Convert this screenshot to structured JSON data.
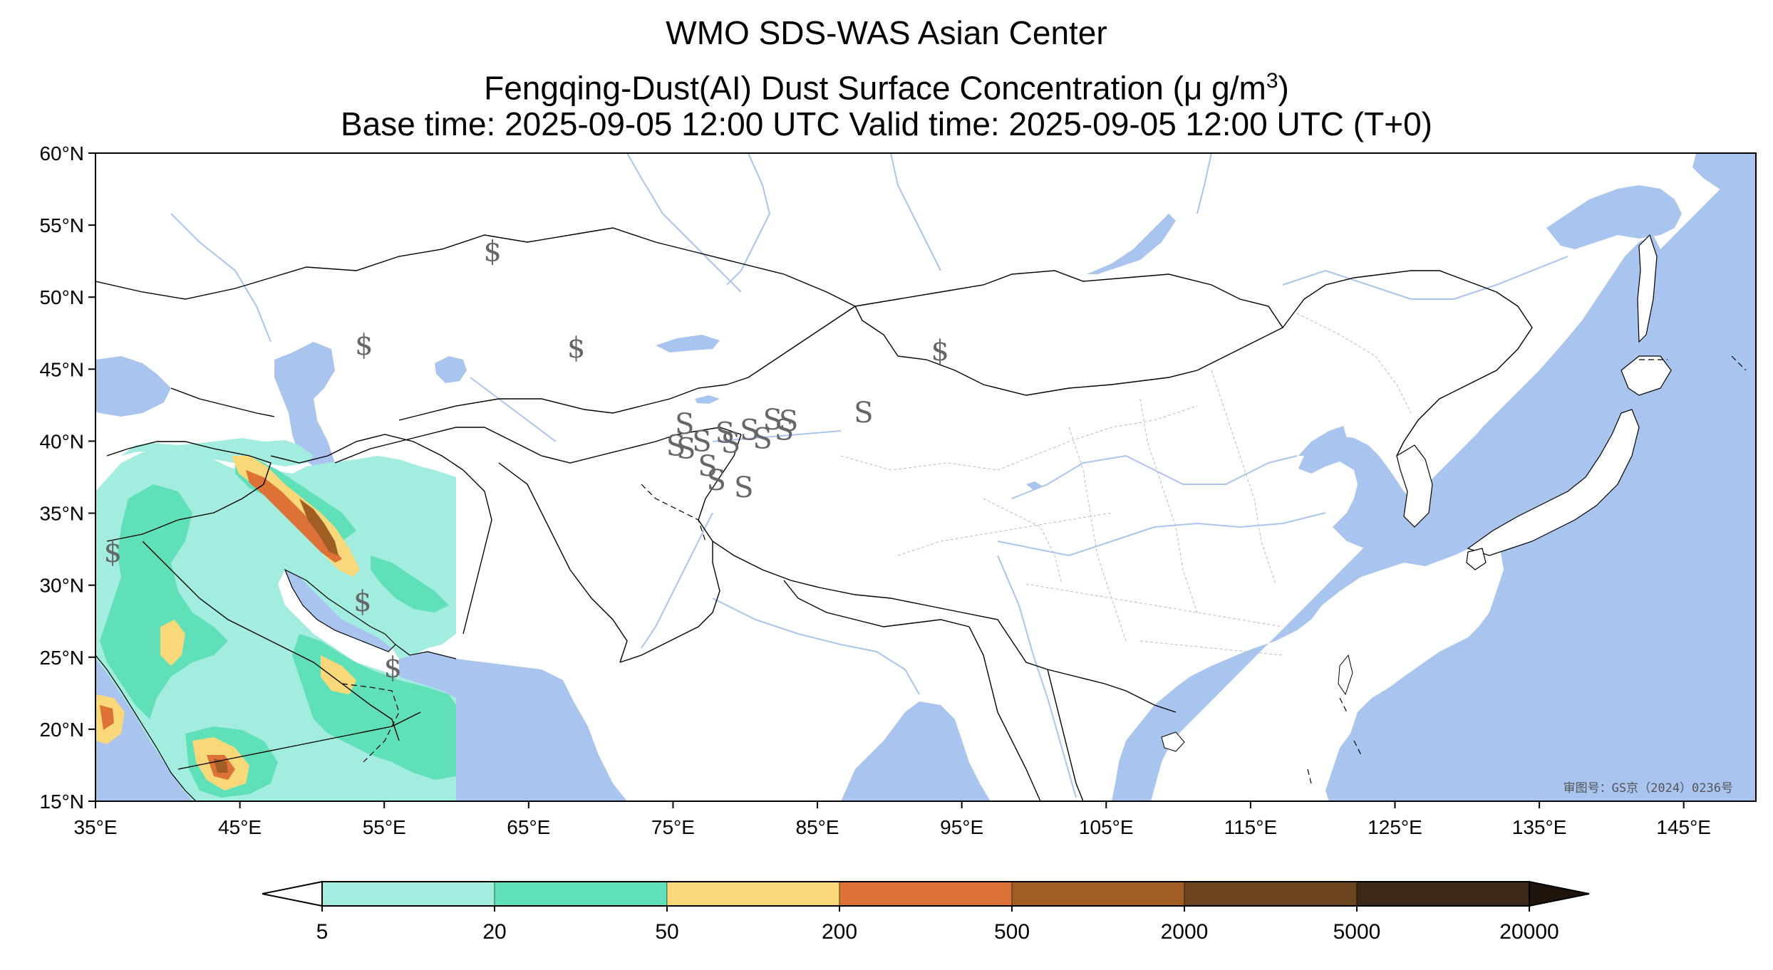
{
  "title": {
    "line1": "WMO SDS-WAS Asian Center",
    "line2_prefix": "Fengqing-Dust(AI) Dust Surface Concentration (μ g/m",
    "line2_sup": "3",
    "line2_suffix": ")",
    "line3": "Base time: 2025-09-05 12:00 UTC Valid time: 2025-09-05 12:00 UTC (T+0)"
  },
  "map": {
    "lon_range": [
      35,
      150
    ],
    "lat_range": [
      15,
      60
    ],
    "lon_ticks": [
      {
        "value": 35,
        "label": "35°E"
      },
      {
        "value": 45,
        "label": "45°E"
      },
      {
        "value": 55,
        "label": "55°E"
      },
      {
        "value": 65,
        "label": "65°E"
      },
      {
        "value": 75,
        "label": "75°E"
      },
      {
        "value": 85,
        "label": "85°E"
      },
      {
        "value": 95,
        "label": "95°E"
      },
      {
        "value": 105,
        "label": "105°E"
      },
      {
        "value": 115,
        "label": "115°E"
      },
      {
        "value": 125,
        "label": "125°E"
      },
      {
        "value": 135,
        "label": "135°E"
      },
      {
        "value": 145,
        "label": "145°E"
      }
    ],
    "lat_ticks": [
      {
        "value": 60,
        "label": "60°N"
      },
      {
        "value": 55,
        "label": "55°N"
      },
      {
        "value": 50,
        "label": "50°N"
      },
      {
        "value": 45,
        "label": "45°N"
      },
      {
        "value": 40,
        "label": "40°N"
      },
      {
        "value": 35,
        "label": "35°N"
      },
      {
        "value": 30,
        "label": "30°N"
      },
      {
        "value": 25,
        "label": "25°N"
      },
      {
        "value": 20,
        "label": "20°N"
      },
      {
        "value": 15,
        "label": "15°N"
      }
    ],
    "watermark": "审图号：GS京（2024）0236号",
    "colors": {
      "ocean": "#a9c4ee",
      "land": "#ffffff",
      "border": "#000000",
      "river": "#a9c4ee",
      "province": "#bbbbbb"
    },
    "weather_symbols": [
      {
        "symbol": "$",
        "lon": 62.5,
        "lat": 53.2
      },
      {
        "symbol": "$",
        "lon": 53.6,
        "lat": 46.7
      },
      {
        "symbol": "$",
        "lon": 68.3,
        "lat": 46.5
      },
      {
        "symbol": "$",
        "lon": 93.5,
        "lat": 46.3
      },
      {
        "symbol": "$",
        "lon": 36.2,
        "lat": 32.3
      },
      {
        "symbol": "$",
        "lon": 53.5,
        "lat": 28.9
      },
      {
        "symbol": "$",
        "lon": 55.6,
        "lat": 24.3
      },
      {
        "symbol": "S",
        "lon": 75.8,
        "lat": 41.2
      },
      {
        "symbol": "S",
        "lon": 75.2,
        "lat": 39.7
      },
      {
        "symbol": "S",
        "lon": 75.9,
        "lat": 39.5
      },
      {
        "symbol": "S",
        "lon": 77.4,
        "lat": 38.3
      },
      {
        "symbol": "S",
        "lon": 78.0,
        "lat": 37.3
      },
      {
        "symbol": "S",
        "lon": 78.6,
        "lat": 40.6
      },
      {
        "symbol": "S",
        "lon": 79.0,
        "lat": 39.9
      },
      {
        "symbol": "S",
        "lon": 80.3,
        "lat": 40.8
      },
      {
        "symbol": "S",
        "lon": 81.2,
        "lat": 40.2
      },
      {
        "symbol": "S",
        "lon": 81.9,
        "lat": 41.5
      },
      {
        "symbol": "S",
        "lon": 82.7,
        "lat": 40.8
      },
      {
        "symbol": "S",
        "lon": 83.0,
        "lat": 41.4
      },
      {
        "symbol": "S",
        "lon": 79.9,
        "lat": 36.8
      },
      {
        "symbol": "S",
        "lon": 88.2,
        "lat": 42.0
      },
      {
        "symbol": "S",
        "lon": 77.0,
        "lat": 40.0
      }
    ]
  },
  "colorbar": {
    "levels": [
      "5",
      "20",
      "50",
      "200",
      "500",
      "2000",
      "5000",
      "20000"
    ],
    "colors": [
      "#a3ece0",
      "#5fe0b8",
      "#f8d878",
      "#dc7236",
      "#a05e24",
      "#6b4520",
      "#3e2817"
    ],
    "under_color": "#ffffff",
    "over_color": "#1e140c"
  }
}
